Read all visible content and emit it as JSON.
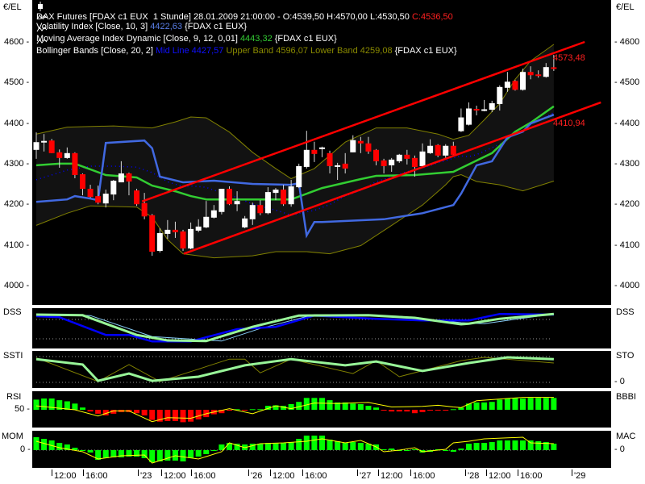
{
  "unit_label": "€/EL",
  "legend": {
    "line1": {
      "text": "DAX Futures [FDAX c1 EUX  1 Stunde] 28.01.2009 21:00:00 - O:4539,50 H:4570,00 L:4530,50 ",
      "close": "C:4536,50"
    },
    "line2": {
      "text": "Volatility Index [Close, 10, 3] ",
      "value": "4422,63",
      "suffix": " {FDAX c1 EUX}"
    },
    "line3": {
      "text": "Moving Average Index Dynamic [Close, 9, 12, 0,01] ",
      "value": "4443,32",
      "suffix": " {FDAX c1 EUX}"
    },
    "line4": {
      "text": "Bollinger Bands [Close, 20, 2] ",
      "mid": "Mid Line 4427,57",
      "upper": " Upper Band 4596,07",
      "lower": " Lower Band 4259,08",
      "suffix": " {FDAX c1 EUX}"
    }
  },
  "channel_labels": {
    "upper": "4573,48",
    "lower": "4410,94"
  },
  "price_ticks": [
    "4600",
    "4500",
    "4400",
    "4300",
    "4200",
    "4100",
    "4000"
  ],
  "panels": {
    "dss": {
      "left": "DSS",
      "right": "DSS"
    },
    "ssti": {
      "left": "SSTI",
      "right": "STO",
      "right_zero": "0"
    },
    "rsi": {
      "left": "RSI",
      "left_50": "50",
      "right": "BBBI"
    },
    "mom": {
      "left": "MOM",
      "left_zero": "0",
      "right": "MAC",
      "right_zero": "0"
    }
  },
  "x_axis": {
    "labels": [
      "12:00",
      "16:00",
      "'23",
      "12:00",
      "16:00",
      "'26",
      "12:00",
      "16:00",
      "'27",
      "12:00",
      "16:00",
      "'28",
      "12:00",
      "16:00",
      "'29"
    ]
  },
  "colors": {
    "up": "#ffffff",
    "down": "#ff0000",
    "volatility": "#4169e1",
    "maid": "#32cd32",
    "bb_band": "#808000",
    "bb_mid": "#0000ff",
    "channel": "#ff0000",
    "yellow": "#ffff00",
    "bar_up": "#00ff00"
  },
  "chart_data": {
    "type": "candlestick",
    "title": "DAX Futures [FDAX c1 EUX 1 Stunde]",
    "ylabel": "€/EL",
    "ylim": [
      3975,
      4700
    ],
    "ohlc": [
      [
        4336,
        4379,
        4314,
        4355
      ],
      [
        4356,
        4375,
        4332,
        4358
      ],
      [
        4359,
        4363,
        4328,
        4328
      ],
      [
        4330,
        4337,
        4292,
        4316
      ],
      [
        4316,
        4342,
        4314,
        4328
      ],
      [
        4328,
        4330,
        4266,
        4274
      ],
      [
        4276,
        4278,
        4224,
        4240
      ],
      [
        4240,
        4250,
        4218,
        4220
      ],
      [
        4222,
        4248,
        4202,
        4206
      ],
      [
        4204,
        4238,
        4194,
        4228
      ],
      [
        4226,
        4262,
        4212,
        4260
      ],
      [
        4256,
        4308,
        4256,
        4278
      ],
      [
        4278,
        4280,
        4224,
        4258
      ],
      [
        4236,
        4240,
        4198,
        4202
      ],
      [
        4205,
        4230,
        4165,
        4172
      ],
      [
        4175,
        4178,
        4075,
        4085
      ],
      [
        4087,
        4143,
        4083,
        4131
      ],
      [
        4129,
        4163,
        4117,
        4139
      ],
      [
        4139,
        4159,
        4119,
        4133
      ],
      [
        4135,
        4139,
        4087,
        4093
      ],
      [
        4093,
        4157,
        4091,
        4141
      ],
      [
        4137,
        4165,
        4133,
        4147
      ],
      [
        4145,
        4210,
        4143,
        4171
      ],
      [
        4169,
        4200,
        4167,
        4187
      ],
      [
        4183,
        4240,
        4177,
        4240
      ],
      [
        4240,
        4246,
        4200,
        4202
      ],
      [
        4202,
        4234,
        4185,
        4210
      ],
      [
        4145,
        4173,
        4143,
        4167
      ],
      [
        4165,
        4206,
        4151,
        4200
      ],
      [
        4200,
        4212,
        4175,
        4180
      ],
      [
        4180,
        4244,
        4177,
        4232
      ],
      [
        4230,
        4242,
        4212,
        4238
      ],
      [
        4238,
        4250,
        4198,
        4202
      ],
      [
        4202,
        4262,
        4196,
        4246
      ],
      [
        4244,
        4302,
        4242,
        4296
      ],
      [
        4294,
        4383,
        4290,
        4336
      ],
      [
        4336,
        4356,
        4306,
        4326
      ],
      [
        4340,
        4344,
        4318,
        4342
      ],
      [
        4328,
        4334,
        4278,
        4296
      ],
      [
        4298,
        4304,
        4262,
        4298
      ],
      [
        4302,
        4328,
        4278,
        4290
      ],
      [
        4330,
        4372,
        4330,
        4360
      ],
      [
        4358,
        4368,
        4328,
        4352
      ],
      [
        4352,
        4368,
        4326,
        4332
      ],
      [
        4336,
        4338,
        4298,
        4308
      ],
      [
        4310,
        4314,
        4278,
        4296
      ],
      [
        4298,
        4316,
        4282,
        4312
      ],
      [
        4308,
        4326,
        4304,
        4324
      ],
      [
        4324,
        4336,
        4300,
        4314
      ],
      [
        4316,
        4322,
        4270,
        4294
      ],
      [
        4296,
        4352,
        4294,
        4332
      ],
      [
        4328,
        4362,
        4326,
        4346
      ],
      [
        4348,
        4350,
        4318,
        4322
      ],
      [
        4322,
        4350,
        4316,
        4346
      ],
      [
        4346,
        4356,
        4322,
        4324
      ],
      [
        4382,
        4438,
        4380,
        4416
      ],
      [
        4398,
        4453,
        4396,
        4438
      ],
      [
        4437,
        4445,
        4421,
        4434
      ],
      [
        4432,
        4459,
        4431,
        4436
      ],
      [
        4435,
        4457,
        4429,
        4451
      ],
      [
        4449,
        4495,
        4433,
        4491
      ],
      [
        4489,
        4528,
        4479,
        4504
      ],
      [
        4506,
        4508,
        4482,
        4484
      ],
      [
        4484,
        4536,
        4482,
        4528
      ],
      [
        4528,
        4542,
        4510,
        4520
      ],
      [
        4522,
        4532,
        4514,
        4518
      ],
      [
        4516,
        4550,
        4514,
        4540
      ],
      [
        4539.5,
        4570,
        4530.5,
        4536.5
      ]
    ],
    "bollinger_upper": [
      [
        0,
        4375
      ],
      [
        4,
        4392
      ],
      [
        10,
        4395
      ],
      [
        15,
        4390
      ],
      [
        18,
        4405
      ],
      [
        20,
        4417
      ],
      [
        22,
        4415
      ],
      [
        25,
        4380
      ],
      [
        28,
        4330
      ],
      [
        31,
        4290
      ],
      [
        33,
        4265
      ],
      [
        36,
        4290
      ],
      [
        40,
        4355
      ],
      [
        44,
        4390
      ],
      [
        48,
        4390
      ],
      [
        52,
        4375
      ],
      [
        54,
        4362
      ],
      [
        56,
        4372
      ],
      [
        58,
        4410
      ],
      [
        60,
        4450
      ],
      [
        62,
        4510
      ],
      [
        64,
        4555
      ],
      [
        67,
        4596.07
      ]
    ],
    "bollinger_lower": [
      [
        0,
        4150
      ],
      [
        4,
        4180
      ],
      [
        7,
        4198
      ],
      [
        13,
        4195
      ],
      [
        15,
        4170
      ],
      [
        17,
        4115
      ],
      [
        19,
        4080
      ],
      [
        23,
        4070
      ],
      [
        28,
        4075
      ],
      [
        31,
        4085
      ],
      [
        35,
        4085
      ],
      [
        38,
        4080
      ],
      [
        42,
        4100
      ],
      [
        46,
        4150
      ],
      [
        50,
        4200
      ],
      [
        53,
        4250
      ],
      [
        54,
        4270
      ],
      [
        55,
        4275
      ],
      [
        57,
        4258
      ],
      [
        60,
        4250
      ],
      [
        63,
        4235
      ],
      [
        67,
        4259.08
      ]
    ],
    "maid": [
      [
        0,
        4298
      ],
      [
        3,
        4302
      ],
      [
        5,
        4302
      ],
      [
        9,
        4274
      ],
      [
        13,
        4268
      ],
      [
        15,
        4248
      ],
      [
        18,
        4234
      ],
      [
        20,
        4222
      ],
      [
        22,
        4214
      ],
      [
        33,
        4214
      ],
      [
        37,
        4242
      ],
      [
        42,
        4264
      ],
      [
        44,
        4272
      ],
      [
        49,
        4274
      ],
      [
        54,
        4282
      ],
      [
        59,
        4328
      ],
      [
        62,
        4381
      ],
      [
        64,
        4403
      ],
      [
        67,
        4443.32
      ]
    ],
    "volatility": [
      [
        0,
        4208
      ],
      [
        4,
        4214
      ],
      [
        5,
        4222
      ],
      [
        7,
        4216
      ],
      [
        8,
        4212
      ],
      [
        9,
        4353
      ],
      [
        14,
        4359
      ],
      [
        15,
        4340
      ],
      [
        16,
        4270
      ],
      [
        19,
        4256
      ],
      [
        23,
        4260
      ],
      [
        28,
        4252
      ],
      [
        33,
        4250
      ],
      [
        34,
        4254
      ],
      [
        35,
        4125
      ],
      [
        36,
        4158
      ],
      [
        37,
        4158
      ],
      [
        45,
        4165
      ],
      [
        50,
        4180
      ],
      [
        54,
        4200
      ],
      [
        55,
        4228
      ],
      [
        57,
        4298
      ],
      [
        59,
        4308
      ],
      [
        61,
        4367
      ],
      [
        63,
        4381
      ],
      [
        64,
        4401
      ],
      [
        67,
        4422.63
      ]
    ],
    "channel_upper": {
      "from": [
        13.7,
        4209
      ],
      "to": [
        71.0,
        4602
      ]
    },
    "channel_lower": {
      "from": [
        19.1,
        4080
      ],
      "to": [
        73.1,
        4453
      ]
    },
    "dss": {
      "levels": [
        20,
        80
      ],
      "blue": [
        [
          0,
          90
        ],
        [
          3,
          87
        ],
        [
          9,
          32
        ],
        [
          12,
          32
        ],
        [
          15,
          12
        ],
        [
          20,
          12
        ],
        [
          26,
          50
        ],
        [
          31,
          57
        ],
        [
          36,
          92
        ],
        [
          44,
          82
        ],
        [
          50,
          77
        ],
        [
          56,
          77
        ],
        [
          60,
          97
        ],
        [
          67,
          95
        ]
      ],
      "green": [
        [
          0,
          95
        ],
        [
          6,
          93
        ],
        [
          13,
          32
        ],
        [
          17,
          15
        ],
        [
          22,
          13
        ],
        [
          28,
          57
        ],
        [
          34,
          92
        ],
        [
          43,
          93
        ],
        [
          49,
          85
        ],
        [
          55,
          65
        ],
        [
          56,
          67
        ],
        [
          60,
          82
        ],
        [
          67,
          97
        ]
      ],
      "lightblue": [
        [
          0,
          95
        ],
        [
          7,
          92
        ],
        [
          15,
          27
        ],
        [
          24,
          13
        ],
        [
          29,
          52
        ],
        [
          36,
          95
        ],
        [
          47,
          90
        ],
        [
          55,
          70
        ],
        [
          58,
          67
        ],
        [
          67,
          97
        ]
      ]
    },
    "ssti": {
      "levels": [
        0,
        100
      ],
      "green": [
        [
          0,
          90
        ],
        [
          6,
          69
        ],
        [
          8,
          6
        ],
        [
          12,
          34
        ],
        [
          15,
          6
        ],
        [
          21,
          22
        ],
        [
          27,
          66
        ],
        [
          33,
          90
        ],
        [
          40,
          66
        ],
        [
          44,
          81
        ],
        [
          50,
          44
        ],
        [
          56,
          75
        ],
        [
          61,
          97
        ],
        [
          67,
          90
        ]
      ],
      "olive": [
        [
          0,
          95
        ],
        [
          8,
          3
        ],
        [
          12,
          69
        ],
        [
          16,
          3
        ],
        [
          25,
          90
        ],
        [
          27,
          90
        ],
        [
          29,
          37
        ],
        [
          33,
          90
        ],
        [
          41,
          34
        ],
        [
          44,
          84
        ],
        [
          47,
          22
        ],
        [
          55,
          84
        ],
        [
          58,
          97
        ],
        [
          67,
          75
        ]
      ]
    },
    "rsi": {
      "baseline": 50,
      "bars": [
        68,
        70,
        70,
        67,
        65,
        61,
        54,
        47,
        43,
        40,
        43,
        46,
        46,
        44,
        40,
        32,
        29,
        30,
        30,
        28,
        29,
        33,
        37,
        42,
        44,
        49,
        51,
        49,
        51,
        51,
        57,
        58,
        57,
        60,
        64,
        71,
        71,
        71,
        67,
        63,
        63,
        61,
        60,
        57,
        54,
        49,
        47,
        47,
        47,
        44,
        46,
        49,
        49,
        49,
        51,
        54,
        61,
        63,
        63,
        64,
        68,
        70,
        71,
        70,
        71,
        71,
        71,
        71
      ],
      "bbbi": [
        [
          0,
          57
        ],
        [
          5,
          50
        ],
        [
          8,
          39
        ],
        [
          10,
          48
        ],
        [
          12,
          48
        ],
        [
          15,
          29
        ],
        [
          17,
          36
        ],
        [
          20,
          35
        ],
        [
          22,
          43
        ],
        [
          25,
          52
        ],
        [
          28,
          43
        ],
        [
          31,
          57
        ],
        [
          33,
          52
        ],
        [
          36,
          62
        ],
        [
          39,
          61
        ],
        [
          43,
          63
        ],
        [
          46,
          55
        ],
        [
          50,
          56
        ],
        [
          52,
          58
        ],
        [
          54,
          55
        ],
        [
          55,
          54
        ],
        [
          57,
          66
        ],
        [
          63,
          72
        ],
        [
          67,
          72
        ]
      ]
    },
    "mom": {
      "baseline": 0,
      "bars": [
        160,
        140,
        120,
        90,
        70,
        30,
        0,
        -30,
        -120,
        -100,
        -90,
        -90,
        -80,
        -80,
        -100,
        -150,
        -140,
        -130,
        -130,
        -140,
        -100,
        -80,
        -50,
        -10,
        70,
        90,
        80,
        70,
        80,
        80,
        90,
        90,
        90,
        100,
        140,
        180,
        180,
        180,
        130,
        110,
        90,
        100,
        90,
        80,
        70,
        10,
        20,
        -10,
        -10,
        10,
        -30,
        -20,
        10,
        -10,
        -20,
        20,
        80,
        90,
        90,
        100,
        120,
        120,
        120,
        120,
        120,
        110,
        100,
        80
      ],
      "mac": [
        [
          0,
          110
        ],
        [
          3,
          30
        ],
        [
          6,
          -20
        ],
        [
          8,
          -110
        ],
        [
          11,
          -70
        ],
        [
          14,
          -60
        ],
        [
          15,
          -160
        ],
        [
          18,
          -70
        ],
        [
          21,
          -110
        ],
        [
          24,
          -20
        ],
        [
          25,
          90
        ],
        [
          27,
          30
        ],
        [
          29,
          80
        ],
        [
          32,
          90
        ],
        [
          35,
          110
        ],
        [
          37,
          140
        ],
        [
          40,
          90
        ],
        [
          42,
          120
        ],
        [
          44,
          40
        ],
        [
          45,
          -20
        ],
        [
          47,
          0
        ],
        [
          49,
          30
        ],
        [
          50,
          -20
        ],
        [
          53,
          10
        ],
        [
          54,
          90
        ],
        [
          56,
          110
        ],
        [
          58,
          140
        ],
        [
          63,
          160
        ],
        [
          64,
          90
        ],
        [
          67,
          80
        ]
      ]
    }
  }
}
